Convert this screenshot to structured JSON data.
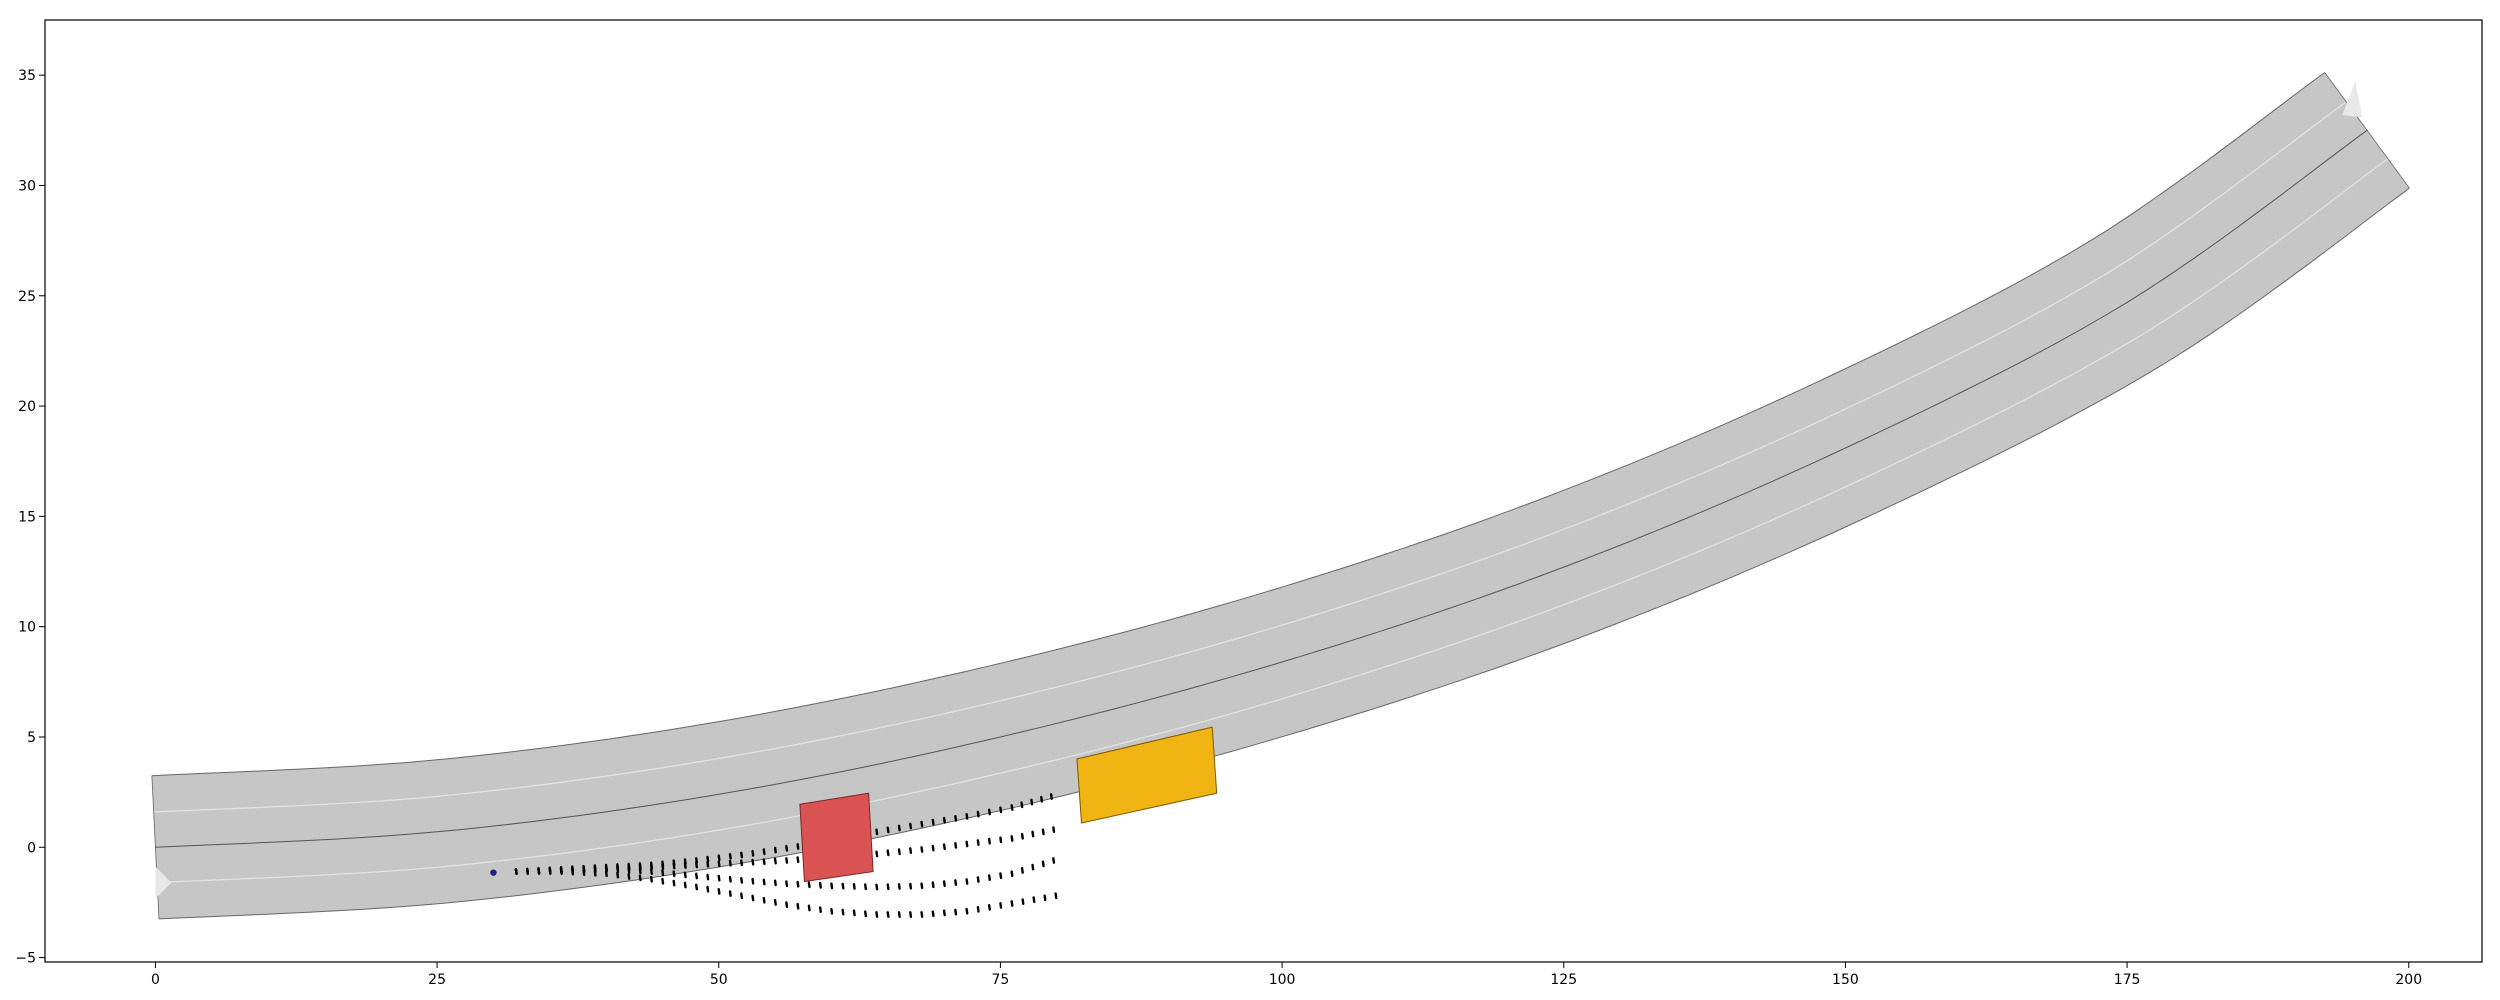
{
  "chart_data": {
    "type": "scatter",
    "title": "",
    "xlabel": "",
    "ylabel": "",
    "xlim": [
      -9.8,
      206.5
    ],
    "ylim": [
      -5.2,
      37.5
    ],
    "grid": false,
    "x_ticks": [
      0,
      25,
      50,
      75,
      100,
      125,
      150,
      175,
      200
    ],
    "x_tick_labels": [
      "0",
      "25",
      "50",
      "75",
      "100",
      "125",
      "150",
      "175",
      "200"
    ],
    "y_ticks": [
      -5,
      0,
      5,
      10,
      15,
      20,
      25,
      30,
      35
    ],
    "y_tick_labels": [
      "−5",
      "0",
      "5",
      "10",
      "15",
      "20",
      "25",
      "30",
      "35"
    ],
    "road": {
      "center_line": [
        [
          0,
          0
        ],
        [
          25,
          0.7
        ],
        [
          50,
          2.4
        ],
        [
          75,
          5.0
        ],
        [
          100,
          8.4
        ],
        [
          125,
          12.7
        ],
        [
          150,
          18.1
        ],
        [
          175,
          24.7
        ],
        [
          196.3,
          32.5
        ]
      ],
      "half_width": 3.25,
      "lane_marker_offset": 1.6,
      "fill_color": "#c6c6c6",
      "edge_color": "#666666",
      "marker_color": "#e2e2e2"
    },
    "ego_start": {
      "x": 30,
      "y": -1.15,
      "color": "#1a237e"
    },
    "predicted_trajectories": [
      {
        "points": [
          [
            32,
            -1.1
          ],
          [
            36,
            -1.0
          ],
          [
            40,
            -0.9
          ],
          [
            44,
            -0.8
          ],
          [
            48,
            -0.6
          ],
          [
            52,
            -0.35
          ],
          [
            56,
            -0.05
          ],
          [
            60,
            0.3
          ],
          [
            64,
            0.7
          ],
          [
            68,
            1.05
          ],
          [
            72,
            1.4
          ],
          [
            76,
            1.8
          ],
          [
            79.5,
            2.3
          ]
        ]
      },
      {
        "points": [
          [
            32,
            -1.1
          ],
          [
            36,
            -1.05
          ],
          [
            40,
            -0.95
          ],
          [
            44,
            -0.9
          ],
          [
            48,
            -0.8
          ],
          [
            52,
            -0.7
          ],
          [
            56,
            -0.6
          ],
          [
            60,
            -0.45
          ],
          [
            64,
            -0.3
          ],
          [
            68,
            -0.1
          ],
          [
            72,
            0.15
          ],
          [
            76,
            0.4
          ],
          [
            79.7,
            0.8
          ]
        ]
      },
      {
        "points": [
          [
            32,
            -1.1
          ],
          [
            36,
            -1.05
          ],
          [
            40,
            -1.0
          ],
          [
            44,
            -1.1
          ],
          [
            48,
            -1.3
          ],
          [
            52,
            -1.5
          ],
          [
            56,
            -1.65
          ],
          [
            60,
            -1.75
          ],
          [
            64,
            -1.8
          ],
          [
            68,
            -1.75
          ],
          [
            72,
            -1.55
          ],
          [
            76,
            -1.2
          ],
          [
            79.7,
            -0.6
          ]
        ]
      },
      {
        "points": [
          [
            32,
            -1.1
          ],
          [
            36,
            -1.1
          ],
          [
            40,
            -1.2
          ],
          [
            44,
            -1.45
          ],
          [
            48,
            -1.8
          ],
          [
            52,
            -2.2
          ],
          [
            56,
            -2.6
          ],
          [
            60,
            -2.9
          ],
          [
            64,
            -3.05
          ],
          [
            68,
            -3.05
          ],
          [
            72,
            -2.9
          ],
          [
            76,
            -2.55
          ],
          [
            79.9,
            -2.2
          ]
        ]
      }
    ],
    "obstacles": [
      {
        "corners": [
          [
            57.2,
            1.95
          ],
          [
            63.3,
            2.45
          ],
          [
            63.7,
            -1.1
          ],
          [
            57.6,
            -1.55
          ]
        ],
        "fill": "#db5252",
        "edge": "#7a2a2a"
      },
      {
        "corners": [
          [
            81.8,
            4.0
          ],
          [
            93.8,
            5.45
          ],
          [
            94.2,
            2.45
          ],
          [
            82.2,
            1.1
          ]
        ],
        "fill": "#f0b513",
        "edge": "#7a5a00"
      }
    ],
    "markers": {
      "start_arrow": {
        "x": 0,
        "y": -1.6
      },
      "end_arrow": {
        "x": 194.8,
        "y": 34.0
      }
    }
  }
}
